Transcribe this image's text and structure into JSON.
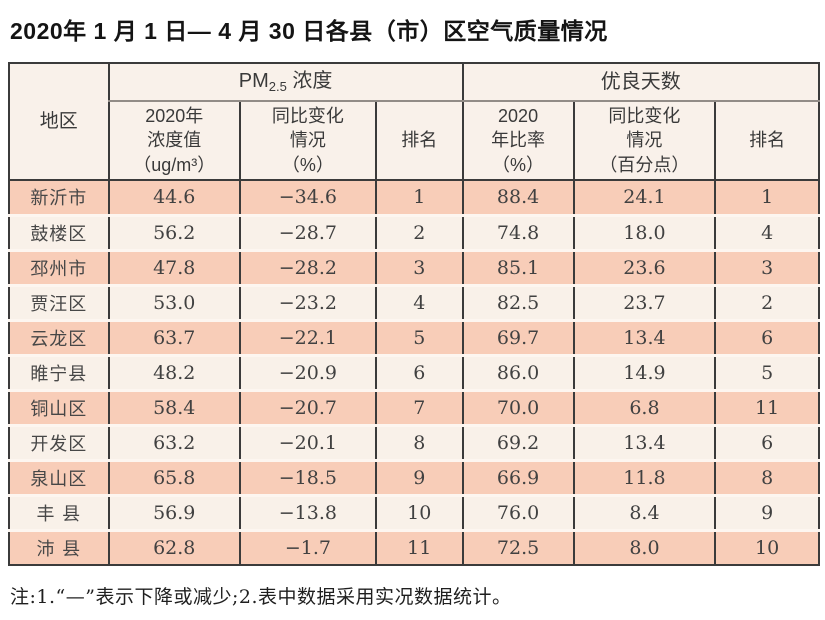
{
  "title": "2020年 1 月 1 日— 4 月 30 日各县（市）区空气质量情况",
  "table": {
    "region_header": "地区",
    "group_pm": {
      "prefix": "PM",
      "sub": "2.5",
      "suffix": " 浓度"
    },
    "group_good": "优良天数",
    "sub_headers": {
      "pm_value": "2020年\n浓度值\n（ug/m³）",
      "pm_change": "同比变化\n情况\n（%）",
      "pm_rank": "排名",
      "good_ratio": "2020\n年比率\n（%）",
      "good_change": "同比变化\n情况\n（百分点）",
      "good_rank": "排名"
    },
    "rows": [
      {
        "region": "新沂市",
        "pm_value": "44.6",
        "pm_change": "−34.6",
        "pm_rank": "1",
        "good_ratio": "88.4",
        "good_change": "24.1",
        "good_rank": "1"
      },
      {
        "region": "鼓楼区",
        "pm_value": "56.2",
        "pm_change": "−28.7",
        "pm_rank": "2",
        "good_ratio": "74.8",
        "good_change": "18.0",
        "good_rank": "4"
      },
      {
        "region": "邳州市",
        "pm_value": "47.8",
        "pm_change": "−28.2",
        "pm_rank": "3",
        "good_ratio": "85.1",
        "good_change": "23.6",
        "good_rank": "3"
      },
      {
        "region": "贾汪区",
        "pm_value": "53.0",
        "pm_change": "−23.2",
        "pm_rank": "4",
        "good_ratio": "82.5",
        "good_change": "23.7",
        "good_rank": "2"
      },
      {
        "region": "云龙区",
        "pm_value": "63.7",
        "pm_change": "−22.1",
        "pm_rank": "5",
        "good_ratio": "69.7",
        "good_change": "13.4",
        "good_rank": "6"
      },
      {
        "region": "睢宁县",
        "pm_value": "48.2",
        "pm_change": "−20.9",
        "pm_rank": "6",
        "good_ratio": "86.0",
        "good_change": "14.9",
        "good_rank": "5"
      },
      {
        "region": "铜山区",
        "pm_value": "58.4",
        "pm_change": "−20.7",
        "pm_rank": "7",
        "good_ratio": "70.0",
        "good_change": "6.8",
        "good_rank": "11"
      },
      {
        "region": "开发区",
        "pm_value": "63.2",
        "pm_change": "−20.1",
        "pm_rank": "8",
        "good_ratio": "69.2",
        "good_change": "13.4",
        "good_rank": "6"
      },
      {
        "region": "泉山区",
        "pm_value": "65.8",
        "pm_change": "−18.5",
        "pm_rank": "9",
        "good_ratio": "66.9",
        "good_change": "11.8",
        "good_rank": "8"
      },
      {
        "region": "丰 县",
        "pm_value": "56.9",
        "pm_change": "−13.8",
        "pm_rank": "10",
        "good_ratio": "76.0",
        "good_change": "8.4",
        "good_rank": "9"
      },
      {
        "region": "沛 县",
        "pm_value": "62.8",
        "pm_change": "−1.7",
        "pm_rank": "11",
        "good_ratio": "72.5",
        "good_change": "8.0",
        "good_rank": "10"
      }
    ]
  },
  "note": "注:1.“—”表示下降或减少;2.表中数据采用实况数据统计。",
  "colors": {
    "row_salmon": "#f8cdb8",
    "row_cream": "#f9f1e9",
    "header_bg": "#f9f1ea",
    "border_dark": "#3b3b3b",
    "border_gray": "#928c87"
  }
}
